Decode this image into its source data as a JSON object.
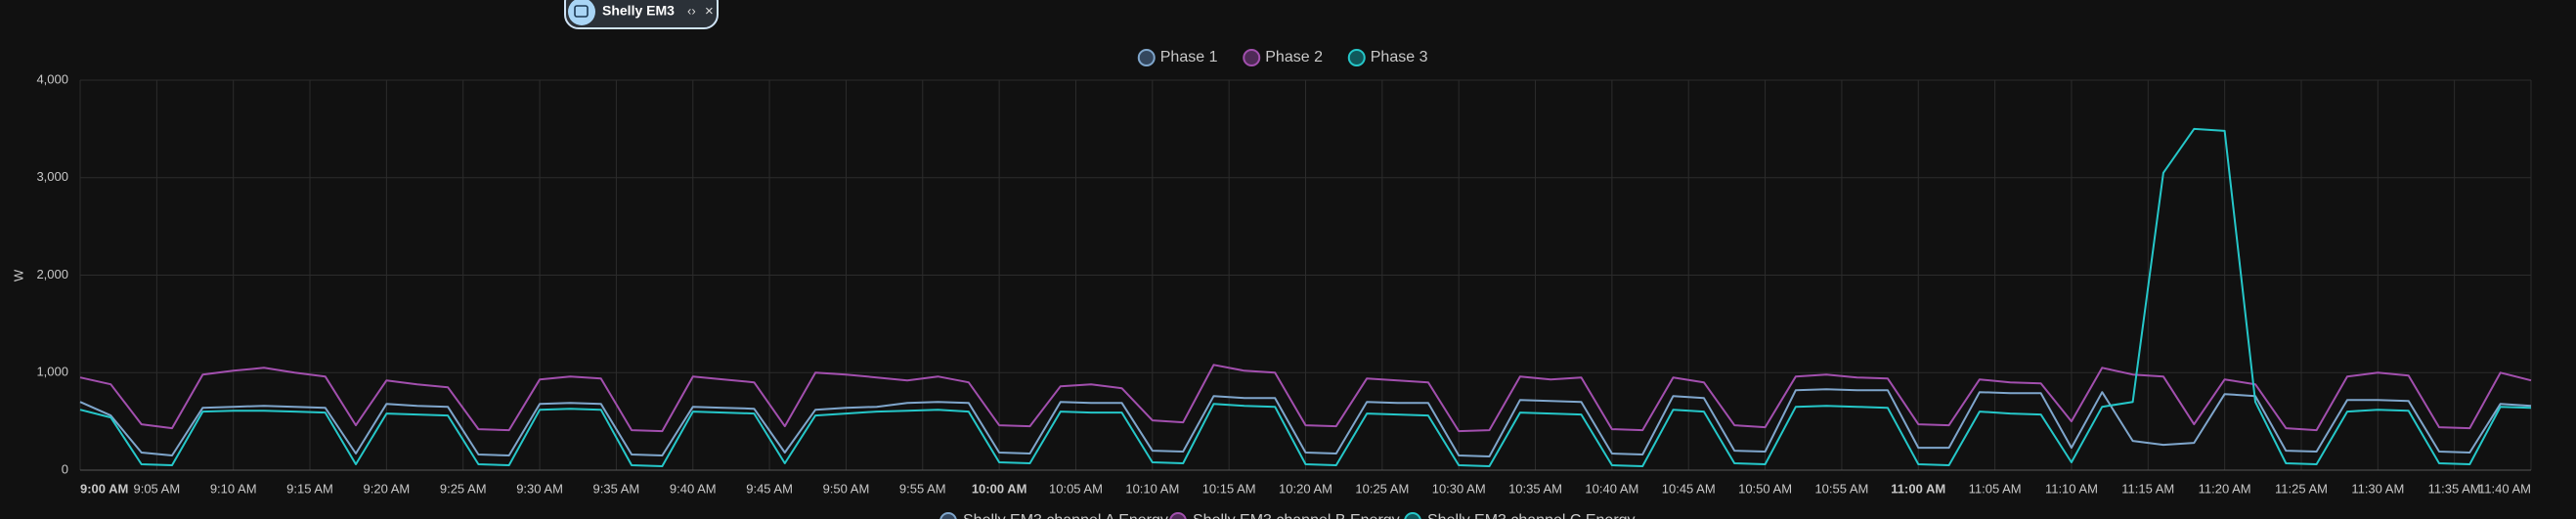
{
  "chip": {
    "label": "Shelly EM3"
  },
  "chart_data": {
    "type": "line",
    "y_label": "W",
    "x": [
      "9:00 AM",
      "9:02 AM",
      "9:04 AM",
      "9:06 AM",
      "9:08 AM",
      "9:10 AM",
      "9:12 AM",
      "9:14 AM",
      "9:16 AM",
      "9:18 AM",
      "9:20 AM",
      "9:22 AM",
      "9:24 AM",
      "9:26 AM",
      "9:28 AM",
      "9:30 AM",
      "9:32 AM",
      "9:34 AM",
      "9:36 AM",
      "9:38 AM",
      "9:40 AM",
      "9:42 AM",
      "9:44 AM",
      "9:46 AM",
      "9:48 AM",
      "9:50 AM",
      "9:52 AM",
      "9:54 AM",
      "9:56 AM",
      "9:58 AM",
      "10:00 AM",
      "10:02 AM",
      "10:04 AM",
      "10:06 AM",
      "10:08 AM",
      "10:10 AM",
      "10:12 AM",
      "10:14 AM",
      "10:16 AM",
      "10:18 AM",
      "10:20 AM",
      "10:22 AM",
      "10:24 AM",
      "10:26 AM",
      "10:28 AM",
      "10:30 AM",
      "10:32 AM",
      "10:34 AM",
      "10:36 AM",
      "10:38 AM",
      "10:40 AM",
      "10:42 AM",
      "10:44 AM",
      "10:46 AM",
      "10:48 AM",
      "10:50 AM",
      "10:52 AM",
      "10:54 AM",
      "10:56 AM",
      "10:58 AM",
      "11:00 AM",
      "11:02 AM",
      "11:04 AM",
      "11:06 AM",
      "11:08 AM",
      "11:10 AM",
      "11:12 AM",
      "11:14 AM",
      "11:16 AM",
      "11:18 AM",
      "11:20 AM",
      "11:22 AM",
      "11:24 AM",
      "11:26 AM",
      "11:28 AM",
      "11:30 AM",
      "11:32 AM",
      "11:34 AM",
      "11:36 AM",
      "11:38 AM",
      "11:40 AM"
    ],
    "series": [
      {
        "name": "Phase 1",
        "color": "#7fa6cc",
        "legend_color": "#34475e",
        "values": [
          700,
          560,
          180,
          150,
          640,
          650,
          660,
          650,
          640,
          170,
          680,
          660,
          650,
          160,
          150,
          680,
          690,
          680,
          160,
          150,
          650,
          640,
          630,
          180,
          620,
          640,
          650,
          690,
          700,
          690,
          180,
          170,
          700,
          690,
          690,
          200,
          190,
          760,
          740,
          740,
          180,
          170,
          700,
          690,
          690,
          150,
          140,
          720,
          710,
          700,
          170,
          160,
          760,
          740,
          200,
          190,
          820,
          830,
          820,
          820,
          230,
          230,
          800,
          790,
          790,
          230,
          800,
          300,
          260,
          280,
          780,
          760,
          200,
          190,
          720,
          720,
          710,
          190,
          180,
          680,
          660
        ]
      },
      {
        "name": "Phase 2",
        "color": "#a24fae",
        "legend_color": "#4f2b57",
        "values": [
          950,
          880,
          470,
          430,
          980,
          1020,
          1050,
          1000,
          960,
          460,
          920,
          880,
          850,
          420,
          410,
          930,
          960,
          940,
          410,
          400,
          960,
          930,
          900,
          450,
          1000,
          980,
          950,
          920,
          960,
          900,
          460,
          450,
          860,
          880,
          840,
          510,
          490,
          1080,
          1020,
          1000,
          460,
          450,
          940,
          920,
          900,
          400,
          410,
          960,
          930,
          950,
          420,
          410,
          950,
          900,
          460,
          440,
          960,
          980,
          950,
          940,
          470,
          460,
          930,
          900,
          890,
          500,
          1050,
          980,
          960,
          470,
          930,
          880,
          430,
          410,
          960,
          1000,
          970,
          440,
          430,
          1000,
          920
        ]
      },
      {
        "name": "Phase 3",
        "color": "#25c7c9",
        "legend_color": "#10585b",
        "values": [
          620,
          540,
          60,
          50,
          600,
          610,
          610,
          600,
          590,
          60,
          580,
          570,
          560,
          60,
          50,
          620,
          630,
          620,
          50,
          40,
          600,
          590,
          580,
          70,
          560,
          580,
          600,
          610,
          620,
          600,
          80,
          70,
          600,
          590,
          590,
          80,
          70,
          680,
          660,
          650,
          60,
          50,
          580,
          570,
          560,
          50,
          40,
          590,
          580,
          570,
          50,
          40,
          620,
          600,
          70,
          60,
          650,
          660,
          650,
          640,
          60,
          50,
          600,
          580,
          570,
          80,
          650,
          700,
          3050,
          3500,
          3480,
          700,
          70,
          60,
          600,
          620,
          610,
          70,
          60,
          650,
          640
        ]
      }
    ],
    "xlim": [
      "9:00 AM",
      "11:40 AM"
    ],
    "xticks": [
      "9:00 AM",
      "9:05 AM",
      "9:10 AM",
      "9:15 AM",
      "9:20 AM",
      "9:25 AM",
      "9:30 AM",
      "9:35 AM",
      "9:40 AM",
      "9:45 AM",
      "9:50 AM",
      "9:55 AM",
      "10:00 AM",
      "10:05 AM",
      "10:10 AM",
      "10:15 AM",
      "10:20 AM",
      "10:25 AM",
      "10:30 AM",
      "10:35 AM",
      "10:40 AM",
      "10:45 AM",
      "10:50 AM",
      "10:55 AM",
      "11:00 AM",
      "11:05 AM",
      "11:10 AM",
      "11:15 AM",
      "11:20 AM",
      "11:25 AM",
      "11:30 AM",
      "11:35 AM",
      "11:40 AM"
    ],
    "ylim": [
      0,
      4000
    ],
    "yticks": [
      0,
      {
        "value": 1000,
        "label": "1,000"
      },
      {
        "value": 2000,
        "label": "2,000"
      },
      {
        "value": 3000,
        "label": "3,000"
      },
      {
        "value": 4000,
        "label": "4,000"
      }
    ],
    "grid": true
  },
  "bottom_legend": [
    "Shelly EM3 channel A Energy",
    "Shelly EM3 channel B Energy",
    "Shelly EM3 channel C Energy"
  ]
}
